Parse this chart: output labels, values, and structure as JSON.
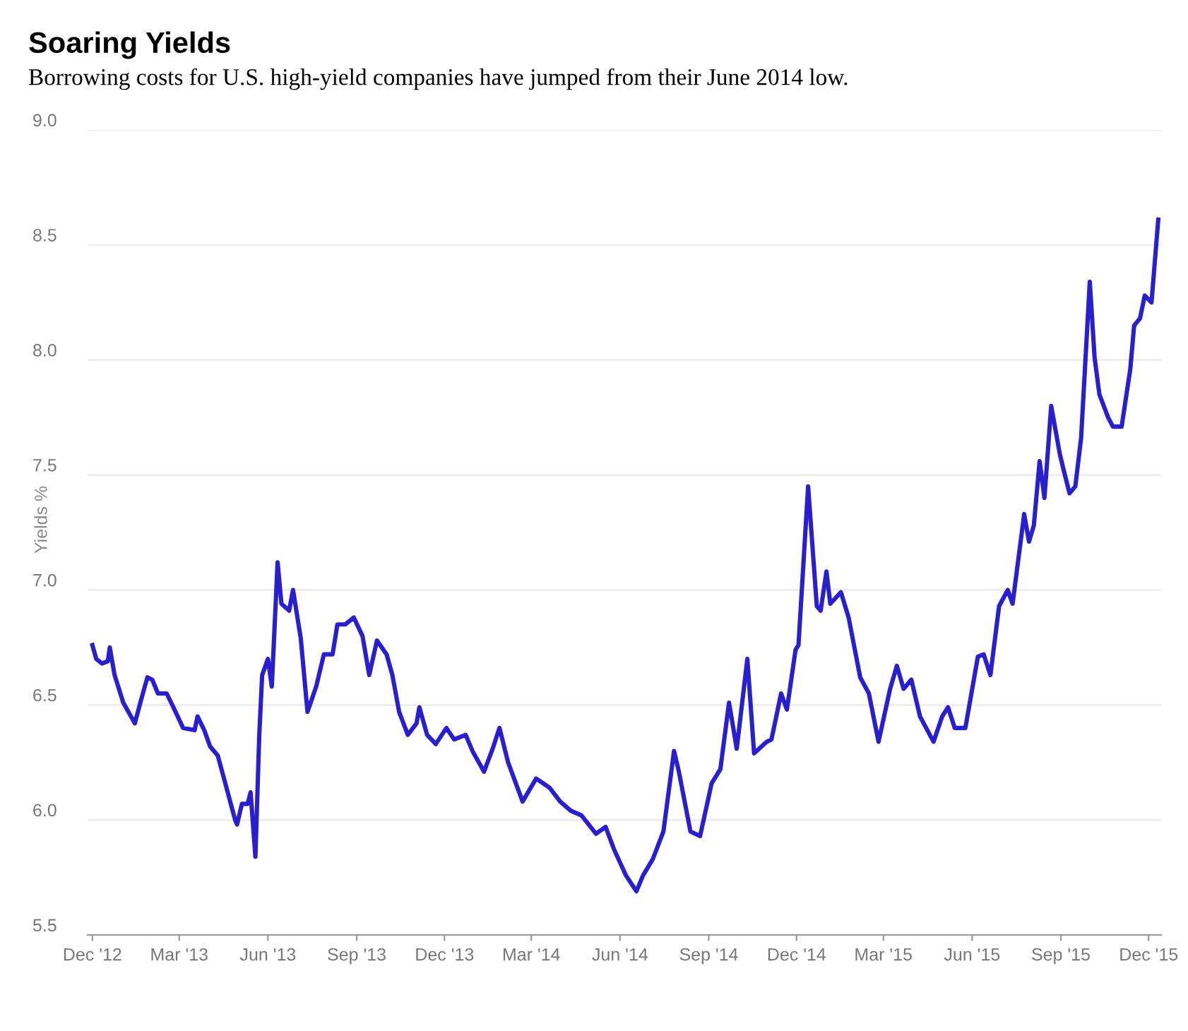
{
  "chart_data": {
    "type": "line",
    "title": "Soaring Yields",
    "subtitle": "Borrowing costs for U.S. high-yield companies have jumped from their June 2014 low.",
    "ylabel": "Yields %",
    "x": [
      "2012-12-01",
      "2012-12-05",
      "2012-12-11",
      "2012-12-17",
      "2012-12-19",
      "2012-12-24",
      "2013-01-02",
      "2013-01-14",
      "2013-01-21",
      "2013-01-27",
      "2013-02-01",
      "2013-02-07",
      "2013-02-16",
      "2013-02-23",
      "2013-03-05",
      "2013-03-17",
      "2013-03-20",
      "2013-03-27",
      "2013-04-02",
      "2013-04-10",
      "2013-04-19",
      "2013-04-28",
      "2013-04-30",
      "2013-05-05",
      "2013-05-11",
      "2013-05-14",
      "2013-05-19",
      "2013-05-23",
      "2013-05-26",
      "2013-06-01",
      "2013-06-05",
      "2013-06-11",
      "2013-06-15",
      "2013-06-23",
      "2013-06-27",
      "2013-07-05",
      "2013-07-12",
      "2013-07-21",
      "2013-07-29",
      "2013-08-07",
      "2013-08-12",
      "2013-08-20",
      "2013-08-29",
      "2013-09-07",
      "2013-09-14",
      "2013-09-22",
      "2013-10-02",
      "2013-10-08",
      "2013-10-15",
      "2013-10-24",
      "2013-11-02",
      "2013-11-05",
      "2013-11-13",
      "2013-11-22",
      "2013-12-03",
      "2013-12-11",
      "2013-12-23",
      "2013-12-30",
      "2014-01-11",
      "2014-01-20",
      "2014-01-27",
      "2014-02-05",
      "2014-02-20",
      "2014-03-06",
      "2014-03-20",
      "2014-03-31",
      "2014-04-11",
      "2014-04-22",
      "2014-05-07",
      "2014-05-17",
      "2014-05-26",
      "2014-06-07",
      "2014-06-18",
      "2014-06-25",
      "2014-07-05",
      "2014-07-16",
      "2014-07-27",
      "2014-08-01",
      "2014-08-13",
      "2014-08-23",
      "2014-09-04",
      "2014-09-13",
      "2014-09-22",
      "2014-09-30",
      "2014-10-11",
      "2014-10-18",
      "2014-10-31",
      "2014-11-05",
      "2014-11-15",
      "2014-11-21",
      "2014-11-30",
      "2014-12-03",
      "2014-12-13",
      "2014-12-22",
      "2014-12-26",
      "2015-01-01",
      "2015-01-05",
      "2015-01-16",
      "2015-01-24",
      "2015-02-05",
      "2015-02-14",
      "2015-02-24",
      "2015-03-08",
      "2015-03-15",
      "2015-03-22",
      "2015-03-30",
      "2015-04-08",
      "2015-04-22",
      "2015-05-01",
      "2015-05-07",
      "2015-05-14",
      "2015-05-25",
      "2015-06-07",
      "2015-06-13",
      "2015-06-20",
      "2015-06-29",
      "2015-07-08",
      "2015-07-13",
      "2015-07-25",
      "2015-07-30",
      "2015-08-04",
      "2015-08-10",
      "2015-08-15",
      "2015-08-22",
      "2015-08-31",
      "2015-09-04",
      "2015-09-10",
      "2015-09-16",
      "2015-09-22",
      "2015-10-01",
      "2015-10-06",
      "2015-10-11",
      "2015-10-20",
      "2015-10-25",
      "2015-11-03",
      "2015-11-12",
      "2015-11-16",
      "2015-11-22",
      "2015-11-27",
      "2015-12-04",
      "2015-12-11"
    ],
    "series": [
      {
        "color": "#2a1fcf",
        "values": [
          6.76,
          6.7,
          6.68,
          6.69,
          6.75,
          6.63,
          6.51,
          6.42,
          6.53,
          6.62,
          6.61,
          6.55,
          6.55,
          6.49,
          6.4,
          6.39,
          6.45,
          6.39,
          6.32,
          6.28,
          6.14,
          6.0,
          5.98,
          6.07,
          6.07,
          6.12,
          5.84,
          6.37,
          6.63,
          6.7,
          6.58,
          7.12,
          6.94,
          6.91,
          7.0,
          6.79,
          6.47,
          6.58,
          6.72,
          6.72,
          6.85,
          6.85,
          6.88,
          6.8,
          6.63,
          6.78,
          6.72,
          6.63,
          6.47,
          6.37,
          6.42,
          6.49,
          6.37,
          6.33,
          6.4,
          6.35,
          6.37,
          6.3,
          6.21,
          6.31,
          6.4,
          6.25,
          6.08,
          6.18,
          6.14,
          6.08,
          6.04,
          6.02,
          5.94,
          5.97,
          5.87,
          5.76,
          5.69,
          5.76,
          5.83,
          5.95,
          6.3,
          6.21,
          5.95,
          5.93,
          6.16,
          6.22,
          6.51,
          6.31,
          6.7,
          6.29,
          6.34,
          6.35,
          6.55,
          6.48,
          6.74,
          6.76,
          7.45,
          6.93,
          6.91,
          7.08,
          6.94,
          6.99,
          6.88,
          6.62,
          6.55,
          6.34,
          6.57,
          6.67,
          6.57,
          6.61,
          6.45,
          6.34,
          6.45,
          6.49,
          6.4,
          6.4,
          6.71,
          6.72,
          6.63,
          6.93,
          7.0,
          6.94,
          7.33,
          7.21,
          7.28,
          7.56,
          7.4,
          7.8,
          7.59,
          7.52,
          7.42,
          7.45,
          7.66,
          8.34,
          8.01,
          7.85,
          7.75,
          7.71,
          7.71,
          7.96,
          8.15,
          8.18,
          8.28,
          8.25,
          8.61
        ]
      }
    ],
    "xlim": [
      "2012-11-26",
      "2015-12-14"
    ],
    "xticks": [
      {
        "value": "2012-12-01",
        "label": "Dec '12"
      },
      {
        "value": "2013-03-01",
        "label": "Mar '13"
      },
      {
        "value": "2013-06-01",
        "label": "Jun '13"
      },
      {
        "value": "2013-09-01",
        "label": "Sep '13"
      },
      {
        "value": "2013-12-01",
        "label": "Dec '13"
      },
      {
        "value": "2014-03-01",
        "label": "Mar '14"
      },
      {
        "value": "2014-06-01",
        "label": "Jun '14"
      },
      {
        "value": "2014-09-01",
        "label": "Sep '14"
      },
      {
        "value": "2014-12-01",
        "label": "Dec '14"
      },
      {
        "value": "2015-03-01",
        "label": "Mar '15"
      },
      {
        "value": "2015-06-01",
        "label": "Jun '15"
      },
      {
        "value": "2015-09-01",
        "label": "Sep '15"
      },
      {
        "value": "2015-12-01",
        "label": "Dec '15"
      }
    ],
    "ylim": [
      5.5,
      9.0
    ],
    "yticks": [
      {
        "value": 5.5,
        "label": "5.5"
      },
      {
        "value": 6.0,
        "label": "6.0"
      },
      {
        "value": 6.5,
        "label": "6.5"
      },
      {
        "value": 7.0,
        "label": "7.0"
      },
      {
        "value": 7.5,
        "label": "7.5"
      },
      {
        "value": 8.0,
        "label": "8.0"
      },
      {
        "value": 8.5,
        "label": "8.5"
      },
      {
        "value": 9.0,
        "label": "9.0"
      }
    ],
    "grid": "y"
  }
}
